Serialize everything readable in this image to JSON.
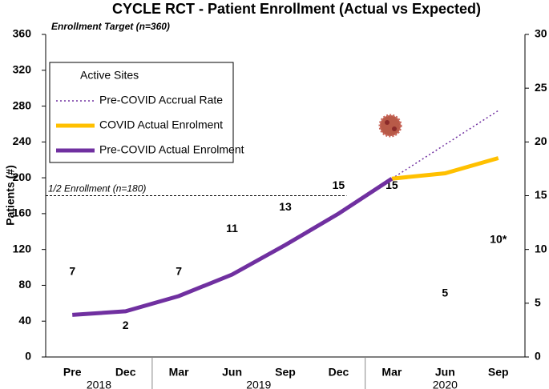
{
  "chart_data": {
    "type": "line",
    "title": "CYCLE RCT - Patient Enrollment (Actual vs Expected)",
    "y_label": "Patients (#)",
    "categories": [
      "Pre",
      "Dec",
      "Mar",
      "Jun",
      "Sep",
      "Dec",
      "Mar",
      "Jun",
      "Sep"
    ],
    "x_groups": [
      "2018",
      "2019",
      "2020"
    ],
    "ylim": [
      0,
      360
    ],
    "yticks": [
      0,
      40,
      80,
      120,
      160,
      200,
      240,
      280,
      320,
      360
    ],
    "y2lim": [
      0,
      30
    ],
    "y2ticks": [
      0,
      5,
      10,
      15,
      20,
      25,
      30
    ],
    "grid": false,
    "legend": "upper left",
    "annotations": [
      "Enrollment Target (n=360)"
    ],
    "reference_lines": [
      {
        "value": 180,
        "label": "1/2 Enrollment (n=180)"
      }
    ],
    "series": [
      {
        "name": "Active Sites",
        "axis": "y2",
        "style": "text",
        "values": [
          7,
          2,
          7,
          11,
          13,
          15,
          15,
          5,
          10
        ],
        "value_labels": [
          "7",
          "2",
          "7",
          "11",
          "13",
          "15",
          "15",
          "5",
          "10*"
        ]
      },
      {
        "name": "Pre-COVID Accrual Rate",
        "color": "#7030a0",
        "style": "dotted",
        "values": [
          null,
          null,
          null,
          null,
          null,
          null,
          199,
          237,
          275
        ]
      },
      {
        "name": "COVID Actual Enrolment",
        "color": "#ffc000",
        "style": "solid",
        "values": [
          null,
          null,
          null,
          null,
          null,
          null,
          199,
          205,
          222
        ]
      },
      {
        "name": "Pre-COVID Actual Enrolment",
        "color": "#7030a0",
        "style": "solid",
        "values": [
          47,
          51,
          68,
          92,
          125,
          160,
          199,
          null,
          null
        ]
      }
    ]
  }
}
